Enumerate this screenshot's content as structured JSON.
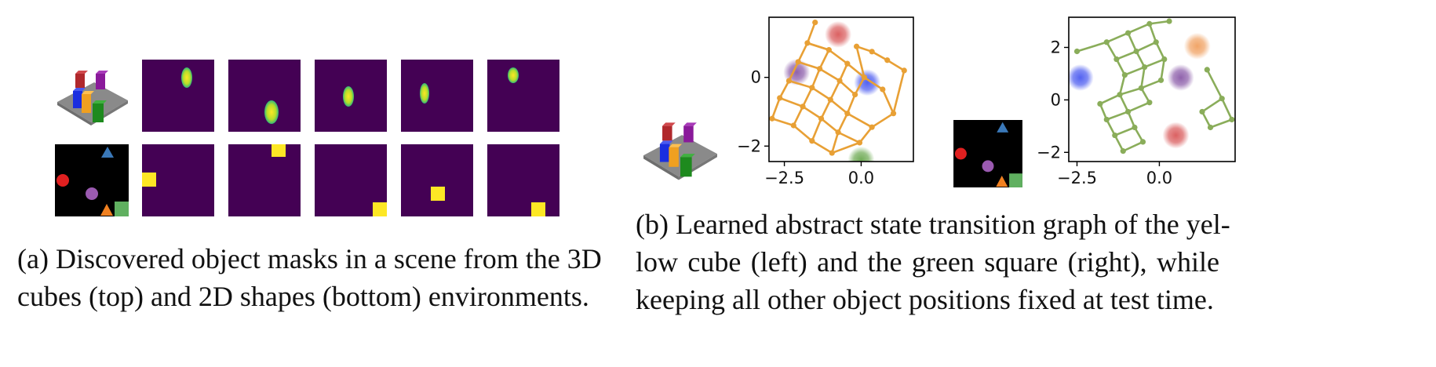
{
  "caption_a": {
    "line1": "(a) Discovered object masks in a scene from the 3D",
    "line2": "cubes (top) and 2D shapes (bottom) environments."
  },
  "caption_b": {
    "line1": "(b) Learned abstract state transition graph of the yel-",
    "line2": "low cube (left) and the green square (right), while",
    "line3": "keeping all other object positions fixed at test time."
  },
  "colors": {
    "mask_bg": "#440154",
    "mask_fg": "#fde725",
    "graph_left": "#e8a035",
    "graph_right": "#8aad5a"
  },
  "chart_data": [
    {
      "type": "scatter",
      "title": "",
      "xlabel": "",
      "ylabel": "",
      "xticks": [
        "−2.5",
        "0.0"
      ],
      "yticks": [
        "0",
        "−2"
      ],
      "xlim": [
        -3.0,
        1.7
      ],
      "ylim": [
        -2.45,
        1.75
      ],
      "grid_points": [
        [
          -1.5,
          1.6
        ],
        [
          -1.75,
          1.0
        ],
        [
          -2.05,
          0.45
        ],
        [
          -2.35,
          -0.1
        ],
        [
          -2.65,
          -0.6
        ],
        [
          -2.9,
          -1.2
        ],
        [
          -1.05,
          0.8
        ],
        [
          -1.35,
          0.25
        ],
        [
          -1.6,
          -0.3
        ],
        [
          -1.9,
          -0.85
        ],
        [
          -2.2,
          -1.4
        ],
        [
          -0.45,
          0.4
        ],
        [
          -0.7,
          -0.1
        ],
        [
          -1.0,
          -0.65
        ],
        [
          -1.3,
          -1.2
        ],
        [
          -1.6,
          -1.85
        ],
        [
          0.1,
          0.0
        ],
        [
          -0.2,
          -0.5
        ],
        [
          -0.45,
          -1.05
        ],
        [
          -0.75,
          -1.6
        ],
        [
          -0.95,
          -2.2
        ],
        [
          -0.15,
          0.9
        ],
        [
          0.35,
          0.75
        ],
        [
          0.85,
          0.5
        ],
        [
          1.4,
          0.2
        ],
        [
          0.7,
          -0.35
        ],
        [
          1.05,
          -1.05
        ],
        [
          0.35,
          -1.45
        ],
        [
          -0.05,
          -1.9
        ]
      ],
      "blobs": [
        {
          "x": -0.75,
          "y": 1.25,
          "color": "#d9595a"
        },
        {
          "x": -2.1,
          "y": 0.15,
          "color": "#8a5aa8"
        },
        {
          "x": 0.2,
          "y": -0.15,
          "color": "#4a5af0"
        },
        {
          "x": 0.0,
          "y": -2.4,
          "color": "#6aa84f"
        }
      ]
    },
    {
      "type": "scatter",
      "title": "",
      "xlabel": "",
      "ylabel": "",
      "xticks": [
        "−2.5",
        "0.0"
      ],
      "yticks": [
        "2",
        "0",
        "−2"
      ],
      "xlim": [
        -2.75,
        2.3
      ],
      "ylim": [
        -2.35,
        3.15
      ],
      "grid_points": [
        [
          -2.5,
          1.85
        ],
        [
          -1.6,
          2.2
        ],
        [
          -0.95,
          2.55
        ],
        [
          -0.3,
          2.9
        ],
        [
          0.3,
          3.0
        ],
        [
          -1.3,
          1.55
        ],
        [
          -0.7,
          1.85
        ],
        [
          -0.1,
          2.2
        ],
        [
          -1.05,
          0.95
        ],
        [
          -0.45,
          1.25
        ],
        [
          0.15,
          1.55
        ],
        [
          -1.8,
          -0.15
        ],
        [
          -1.2,
          0.2
        ],
        [
          -0.55,
          0.45
        ],
        [
          0.05,
          0.75
        ],
        [
          -1.6,
          -0.75
        ],
        [
          -0.95,
          -0.45
        ],
        [
          -0.3,
          -0.1
        ],
        [
          -1.35,
          -1.35
        ],
        [
          -0.75,
          -1.05
        ],
        [
          -1.1,
          -1.95
        ],
        [
          -0.5,
          -1.6
        ],
        [
          1.45,
          1.15
        ],
        [
          1.9,
          0.05
        ],
        [
          2.2,
          -0.75
        ],
        [
          1.55,
          -1.05
        ],
        [
          1.3,
          -0.45
        ]
      ],
      "blobs": [
        {
          "x": 1.15,
          "y": 2.05,
          "color": "#f0a060"
        },
        {
          "x": -2.4,
          "y": 0.85,
          "color": "#4a5af0"
        },
        {
          "x": 0.65,
          "y": 0.85,
          "color": "#8a5aa8"
        },
        {
          "x": 0.5,
          "y": -1.35,
          "color": "#d9595a"
        }
      ]
    }
  ]
}
